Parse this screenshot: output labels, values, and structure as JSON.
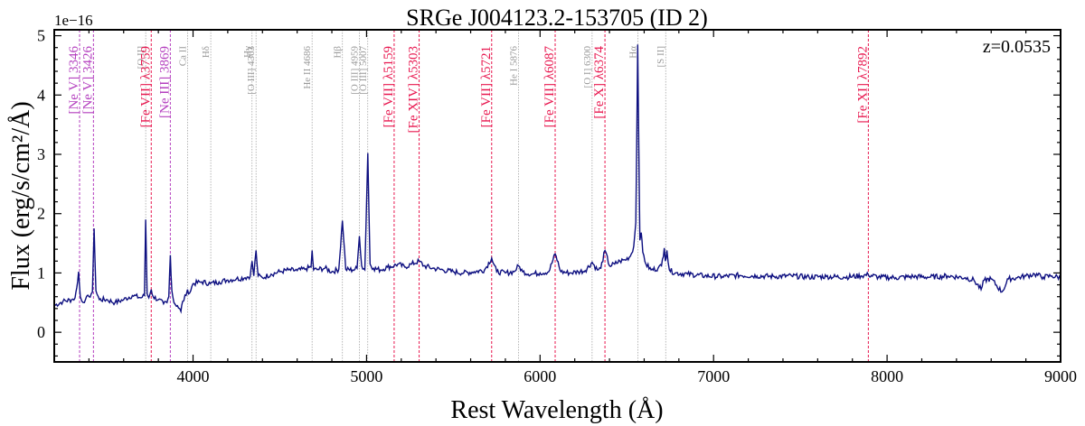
{
  "chart_data": {
    "type": "line",
    "title": "SRGe J004123.2-153705 (ID 2)",
    "xlabel": "Rest Wavelength (Å)",
    "ylabel": "Flux (erg/s/cm²/Å)",
    "y_multiplier": "1e−16",
    "annotation": "z=0.0535",
    "xlim": [
      3200,
      9000
    ],
    "ylim": [
      -0.5,
      5.1
    ],
    "x_ticks": [
      4000,
      5000,
      6000,
      7000,
      8000,
      9000
    ],
    "y_ticks": [
      0,
      1,
      2,
      3,
      4,
      5
    ],
    "legend": "none",
    "grid": false,
    "colors": {
      "spectrum": "#0d0f80",
      "coronal": "#e8174f",
      "highion": "#b43fbf",
      "standard": "#999999"
    },
    "series": [
      {
        "x": [
          3200,
          3250,
          3300,
          3320,
          3330,
          3340,
          3350,
          3360,
          3380,
          3400,
          3420,
          3430,
          3440,
          3460,
          3500,
          3550,
          3600,
          3650,
          3700,
          3720,
          3727,
          3735,
          3745,
          3759,
          3770,
          3800,
          3830,
          3850,
          3860,
          3869,
          3878,
          3890,
          3910,
          3930,
          3940,
          3960,
          3968,
          3980,
          4000,
          4050,
          4100,
          4150,
          4200,
          4250,
          4300,
          4330,
          4340,
          4350,
          4363,
          4375,
          4400,
          4450,
          4500,
          4550,
          4600,
          4650,
          4680,
          4686,
          4695,
          4720,
          4760,
          4800,
          4840,
          4861,
          4880,
          4920,
          4945,
          4959,
          4972,
          4990,
          5007,
          5020,
          5040,
          5080,
          5120,
          5159,
          5180,
          5220,
          5260,
          5303,
          5330,
          5380,
          5440,
          5500,
          5560,
          5620,
          5680,
          5721,
          5750,
          5800,
          5850,
          5876,
          5900,
          5950,
          6000,
          6050,
          6087,
          6120,
          6170,
          6220,
          6260,
          6300,
          6330,
          6350,
          6374,
          6400,
          6430,
          6460,
          6490,
          6520,
          6540,
          6552,
          6563,
          6575,
          6583,
          6592,
          6610,
          6640,
          6680,
          6700,
          6716,
          6722,
          6731,
          6745,
          6780,
          6850,
          6950,
          7050,
          7150,
          7250,
          7350,
          7450,
          7550,
          7650,
          7750,
          7850,
          7892,
          7950,
          8050,
          8150,
          8250,
          8350,
          8450,
          8500,
          8542,
          8560,
          8600,
          8662,
          8700,
          8750,
          8800,
          8850,
          8900,
          8950,
          9000
        ],
        "y": [
          0.45,
          0.52,
          0.55,
          0.58,
          0.75,
          1.02,
          0.6,
          0.52,
          0.55,
          0.6,
          0.68,
          1.75,
          0.7,
          0.55,
          0.55,
          0.5,
          0.55,
          0.62,
          0.58,
          0.62,
          1.9,
          0.65,
          0.58,
          0.72,
          0.6,
          0.55,
          0.48,
          0.5,
          0.6,
          1.3,
          0.7,
          0.5,
          0.45,
          0.35,
          0.52,
          0.62,
          0.72,
          0.66,
          0.82,
          0.85,
          0.82,
          0.85,
          0.88,
          0.9,
          0.92,
          0.95,
          1.2,
          0.95,
          1.38,
          0.95,
          0.92,
          0.98,
          1.02,
          1.05,
          1.04,
          1.07,
          1.1,
          1.38,
          1.05,
          1.06,
          1.08,
          1.02,
          1.06,
          1.88,
          1.06,
          1.05,
          1.08,
          1.62,
          1.12,
          1.05,
          3.02,
          1.15,
          1.08,
          1.05,
          1.1,
          1.12,
          1.15,
          1.1,
          1.15,
          1.2,
          1.12,
          1.08,
          1.05,
          1.02,
          1.0,
          1.02,
          1.05,
          1.25,
          1.02,
          1.0,
          1.02,
          1.12,
          1.02,
          0.98,
          1.0,
          1.02,
          1.32,
          1.02,
          1.0,
          1.02,
          1.04,
          1.18,
          1.05,
          1.08,
          1.38,
          1.12,
          1.15,
          1.2,
          1.22,
          1.28,
          1.45,
          1.85,
          4.85,
          1.55,
          1.68,
          1.35,
          1.15,
          1.05,
          1.08,
          1.12,
          1.42,
          1.2,
          1.38,
          1.05,
          1.0,
          0.98,
          0.95,
          0.94,
          0.96,
          0.95,
          0.94,
          0.95,
          0.93,
          0.94,
          0.93,
          0.95,
          0.97,
          0.93,
          0.92,
          0.94,
          0.93,
          0.95,
          0.92,
          0.88,
          0.72,
          0.88,
          0.9,
          0.68,
          0.9,
          0.92,
          0.95,
          0.98,
          0.93,
          0.95,
          0.92
        ]
      }
    ],
    "lines": [
      {
        "label": "[Ne V] 3346",
        "x": 3346,
        "kind": "highion"
      },
      {
        "label": "[Ne V] 3426",
        "x": 3426,
        "kind": "highion"
      },
      {
        "label": "[O II]",
        "x": 3727,
        "kind": "standard"
      },
      {
        "label": "[Fe VII] λ3759",
        "x": 3759,
        "kind": "coronal"
      },
      {
        "label": "[Ne III] 3869",
        "x": 3869,
        "kind": "highion"
      },
      {
        "label": "Ca II",
        "x": 3968,
        "kind": "standard"
      },
      {
        "label": "Hδ",
        "x": 4102,
        "kind": "standard"
      },
      {
        "label": "Hγ",
        "x": 4340,
        "kind": "standard"
      },
      {
        "label": "[O III] 4363",
        "x": 4363,
        "kind": "standard"
      },
      {
        "label": "He II 4686",
        "x": 4686,
        "kind": "standard"
      },
      {
        "label": "Hβ",
        "x": 4861,
        "kind": "standard"
      },
      {
        "label": "[O III] 4959",
        "x": 4959,
        "kind": "standard"
      },
      {
        "label": "[O III] 5007",
        "x": 5007,
        "kind": "standard"
      },
      {
        "label": "[Fe VII] λ5159",
        "x": 5159,
        "kind": "coronal"
      },
      {
        "label": "[Fe XIV] λ5303",
        "x": 5303,
        "kind": "coronal"
      },
      {
        "label": "[Fe VII] λ5721",
        "x": 5721,
        "kind": "coronal"
      },
      {
        "label": "He I 5876",
        "x": 5876,
        "kind": "standard"
      },
      {
        "label": "[Fe VII] λ6087",
        "x": 6087,
        "kind": "coronal"
      },
      {
        "label": "[O I] 6300",
        "x": 6300,
        "kind": "standard"
      },
      {
        "label": "[Fe X] λ6374",
        "x": 6374,
        "kind": "coronal"
      },
      {
        "label": "Hα",
        "x": 6563,
        "kind": "standard"
      },
      {
        "label": "[S II]",
        "x": 6724,
        "kind": "standard"
      },
      {
        "label": "[Fe XI] λ7892",
        "x": 7892,
        "kind": "coronal"
      }
    ]
  }
}
